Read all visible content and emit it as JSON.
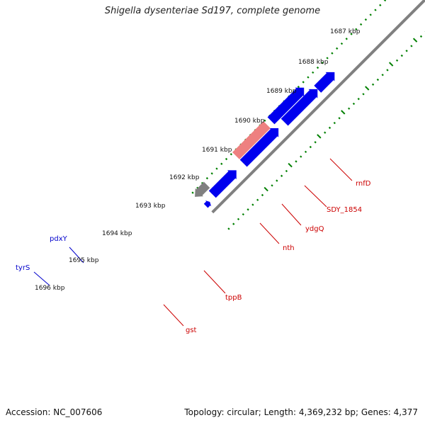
{
  "title": "Shigella dysenteriae Sd197, complete genome",
  "accession": "Accession: NC_007606",
  "summary": "Topology: circular; Length: 4,369,232 bp; Genes: 4,377",
  "tick_labels": [
    "1687 kbp",
    "1688 kbp",
    "1689 kbp",
    "1690 kbp",
    "1691 kbp",
    "1692 kbp",
    "1693 kbp",
    "1694 kbp",
    "1695 kbp",
    "1696 kbp"
  ],
  "colors": {
    "forward_gene": "#0000ee",
    "reverse_gene": "#ee0000",
    "reverse_gene_cyan": "#00eeee",
    "pseudo_gene": "#ee8080",
    "tppB": "#4682b4",
    "gst": "#bdb76b",
    "nth": "#ee1493",
    "backbone": "#808080",
    "tick": "#008000",
    "forward_label": "#0000cc",
    "reverse_label": "#cc0000"
  },
  "gene_labels": {
    "forward": [
      "pdxY",
      "tyrS"
    ],
    "reverse": [
      "rnfD",
      "SDY_1854",
      "ydgQ",
      "nth",
      "tppB",
      "gst"
    ]
  }
}
